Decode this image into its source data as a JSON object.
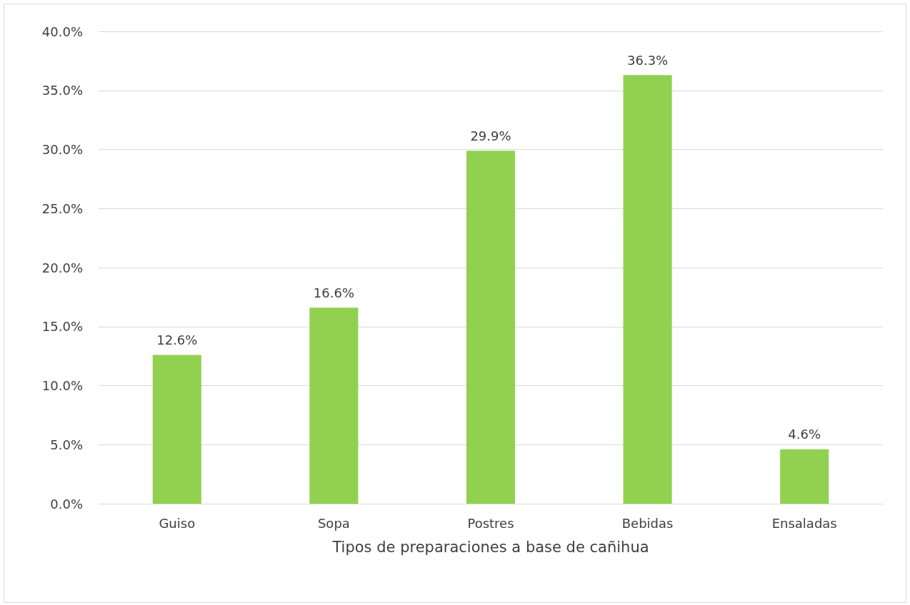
{
  "chart_data": {
    "type": "bar",
    "xlabel": "Tipos de preparaciones a base de cañihua",
    "categories": [
      "Guiso",
      "Sopa",
      "Postres",
      "Bebidas",
      "Ensaladas"
    ],
    "values": [
      12.6,
      16.6,
      29.9,
      36.3,
      4.6
    ],
    "value_labels": [
      "12.6%",
      "16.6%",
      "29.9%",
      "36.3%",
      "4.6%"
    ],
    "color": "#92d050",
    "ylim": [
      0,
      40
    ],
    "yticks": [
      {
        "value": 0,
        "label": "0.0%"
      },
      {
        "value": 5,
        "label": "5.0%"
      },
      {
        "value": 10,
        "label": "10.0%"
      },
      {
        "value": 15,
        "label": "15.0%"
      },
      {
        "value": 20,
        "label": "20.0%"
      },
      {
        "value": 25,
        "label": "25.0%"
      },
      {
        "value": 30,
        "label": "30.0%"
      },
      {
        "value": 35,
        "label": "35.0%"
      },
      {
        "value": 40,
        "label": "40.0%"
      }
    ],
    "grid": "y"
  }
}
